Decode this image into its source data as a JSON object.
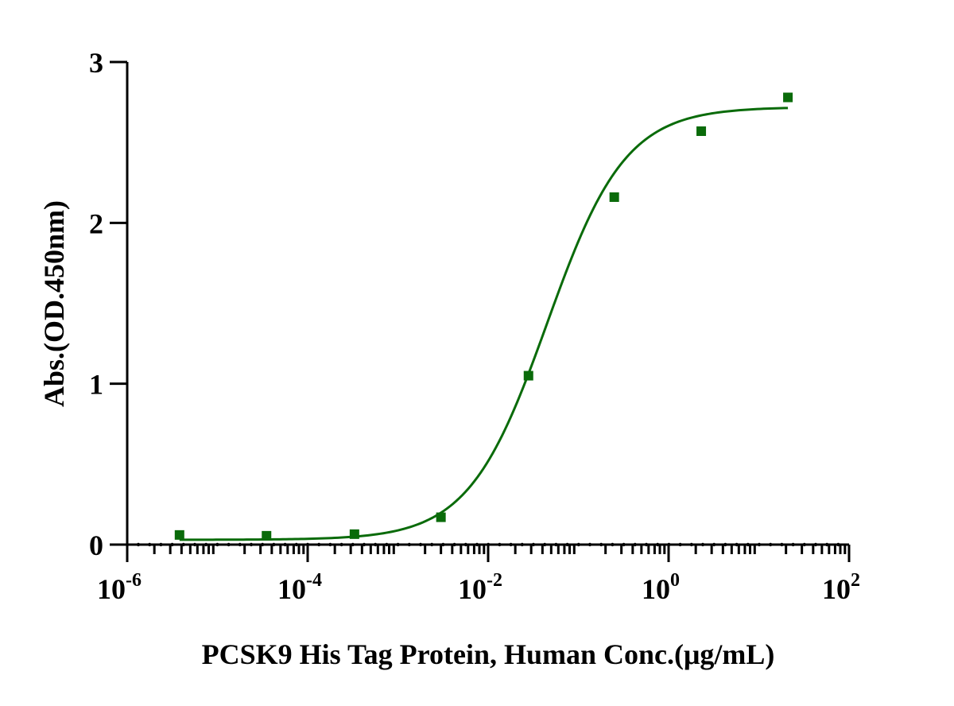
{
  "chart_data": {
    "type": "scatter",
    "title": "",
    "xlabel": "PCSK9 His Tag  Protein, Human Conc.(μg/mL)",
    "ylabel": "Abs.(OD.450nm)",
    "xscale": "log",
    "xlim": [
      1e-06,
      100
    ],
    "ylim": [
      0,
      3
    ],
    "x_ticks": [
      {
        "value": 1e-06,
        "base": "10",
        "exp": "-6"
      },
      {
        "value": 0.0001,
        "base": "10",
        "exp": "-4"
      },
      {
        "value": 0.01,
        "base": "10",
        "exp": "-2"
      },
      {
        "value": 1,
        "base": "10",
        "exp": "0"
      },
      {
        "value": 100,
        "base": "10",
        "exp": "2"
      }
    ],
    "y_ticks": [
      {
        "value": 0,
        "label": "0"
      },
      {
        "value": 1,
        "label": "1"
      },
      {
        "value": 2,
        "label": "2"
      },
      {
        "value": 3,
        "label": "3"
      }
    ],
    "grid": false,
    "legend": "none",
    "color": "#0a6b0a",
    "series": [
      {
        "marker": "square",
        "x": [
          3.8e-06,
          3.5e-05,
          0.00033,
          0.003,
          0.028,
          0.25,
          2.3,
          21
        ],
        "y": [
          0.06,
          0.055,
          0.065,
          0.17,
          1.05,
          2.16,
          2.57,
          2.78
        ]
      }
    ],
    "fit": {
      "type": "4PL",
      "bottom": 0.03,
      "top": 2.72,
      "ec50": 0.045,
      "hill": 1.0,
      "x_range": [
        3.8e-06,
        21
      ]
    }
  }
}
